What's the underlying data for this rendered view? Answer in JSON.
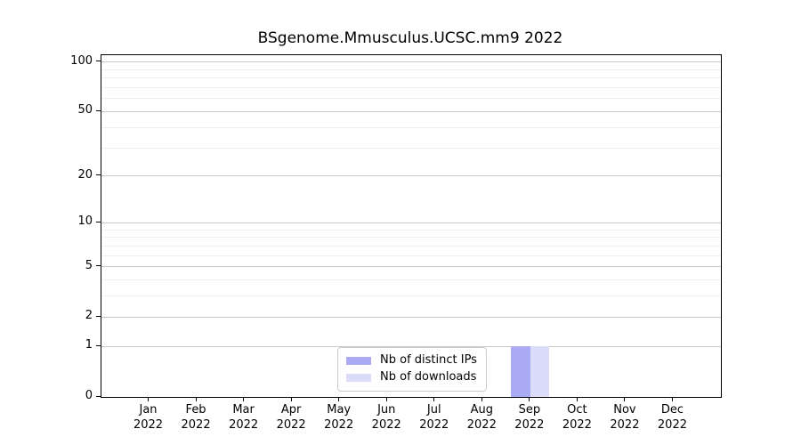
{
  "chart_data": {
    "type": "bar",
    "title": "BSgenome.Mmusculus.UCSC.mm9 2022",
    "categories": [
      "Jan 2022",
      "Feb 2022",
      "Mar 2022",
      "Apr 2022",
      "May 2022",
      "Jun 2022",
      "Jul 2022",
      "Aug 2022",
      "Sep 2022",
      "Oct 2022",
      "Nov 2022",
      "Dec 2022"
    ],
    "series": [
      {
        "name": "Nb of distinct IPs",
        "color": "#aaaaf5",
        "values": [
          0,
          0,
          0,
          0,
          0,
          0,
          0,
          0,
          1,
          0,
          0,
          0
        ]
      },
      {
        "name": "Nb of downloads",
        "color": "#dbdbfa",
        "values": [
          0,
          0,
          0,
          0,
          0,
          0,
          0,
          0,
          1,
          0,
          0,
          0
        ]
      }
    ],
    "xlabel": "",
    "ylabel": "",
    "y_scale": "log1p",
    "ylim": [
      0,
      110
    ],
    "y_ticks_major": [
      0,
      1,
      2,
      5,
      10,
      20,
      50,
      100
    ],
    "y_ticks_minor": [
      3,
      4,
      6,
      7,
      8,
      9,
      30,
      40,
      60,
      70,
      80,
      90
    ],
    "grid": {
      "major_color": "#c8c8c8",
      "minor_color": "#eeeeee",
      "vertical": false
    },
    "legend": {
      "position": "lower center"
    },
    "colors": {
      "spine": "#000000",
      "background": "#ffffff"
    }
  }
}
